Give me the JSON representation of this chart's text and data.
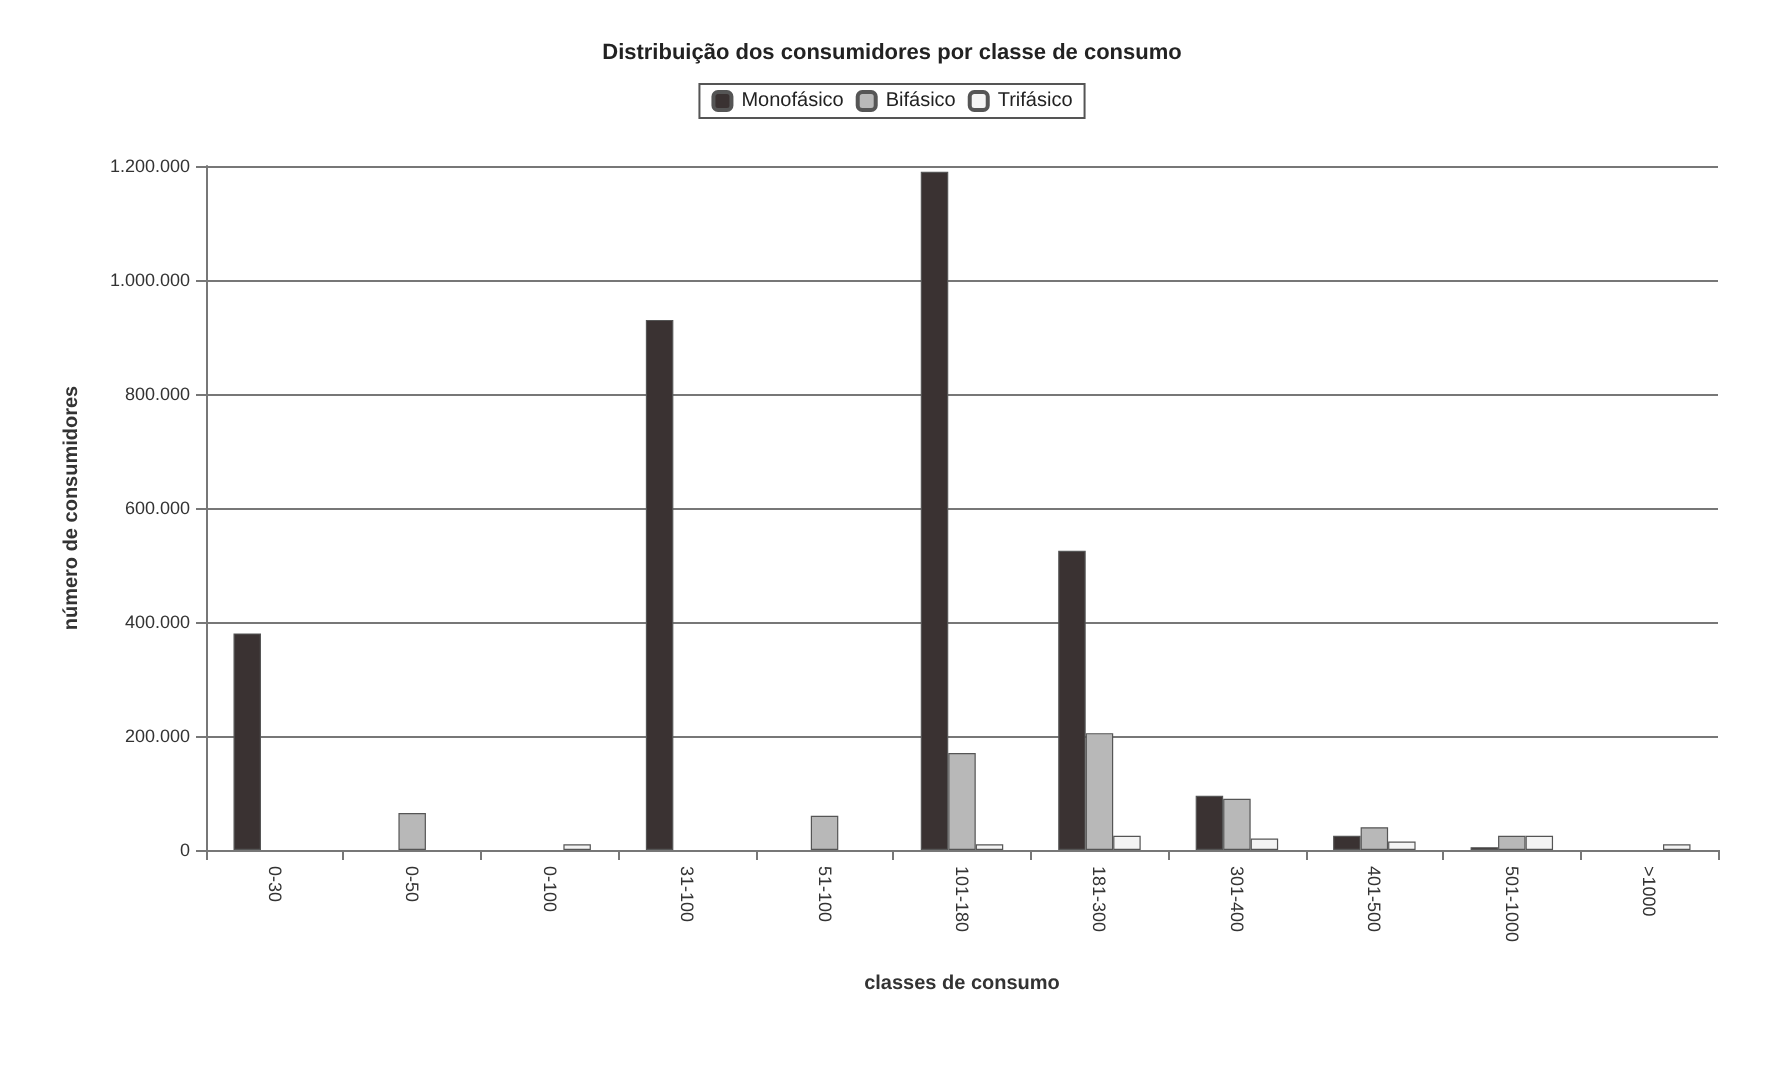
{
  "chart_data": {
    "type": "bar",
    "title": "Distribuição dos consumidores por classe de consumo",
    "xlabel": "classes de consumo",
    "ylabel": "número de consumidores",
    "categories": [
      "0-30",
      "0-50",
      "0-100",
      "31-100",
      "51-100",
      "101-180",
      "181-300",
      "301-400",
      "401-500",
      "501-1000",
      ">1000"
    ],
    "series": [
      {
        "name": "Monofásico",
        "color": "#3a3232",
        "values": [
          380000,
          0,
          0,
          930000,
          0,
          1190000,
          525000,
          95000,
          25000,
          5000,
          0
        ]
      },
      {
        "name": "Bifásico",
        "color": "#b8b8b8",
        "values": [
          0,
          65000,
          0,
          0,
          60000,
          170000,
          205000,
          90000,
          40000,
          25000,
          0
        ]
      },
      {
        "name": "Trifásico",
        "color": "#f4f4f4",
        "values": [
          0,
          0,
          10000,
          0,
          0,
          10000,
          25000,
          20000,
          15000,
          25000,
          10000
        ]
      }
    ],
    "ylim": [
      0,
      1200000
    ],
    "yticks": [
      {
        "value": 0,
        "label": "0"
      },
      {
        "value": 200000,
        "label": "200.000"
      },
      {
        "value": 400000,
        "label": "400.000"
      },
      {
        "value": 600000,
        "label": "600.000"
      },
      {
        "value": 800000,
        "label": "800.000"
      },
      {
        "value": 1000000,
        "label": "1.000.000"
      },
      {
        "value": 1200000,
        "label": "1.200.000"
      }
    ],
    "grid": "y",
    "legend": "top"
  }
}
